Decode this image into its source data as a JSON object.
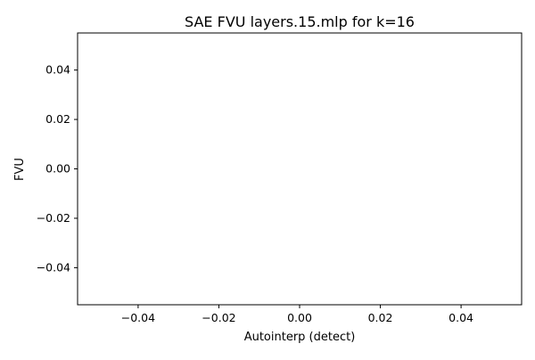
{
  "chart_data": {
    "type": "scatter",
    "title": "SAE FVU layers.15.mlp for k=16",
    "xlabel": "Autointerp (detect)",
    "ylabel": "FVU",
    "xlim": [
      -0.055,
      0.055
    ],
    "ylim": [
      -0.055,
      0.055
    ],
    "xticks": [
      -0.04,
      -0.02,
      0.0,
      0.02,
      0.04
    ],
    "yticks": [
      -0.04,
      -0.02,
      0.0,
      0.02,
      0.04
    ],
    "xtick_labels": [
      "−0.04",
      "−0.02",
      "0.00",
      "0.02",
      "0.04"
    ],
    "ytick_labels": [
      "−0.04",
      "−0.02",
      "0.00",
      "0.02",
      "0.04"
    ],
    "grid": false,
    "series": [
      {
        "x": [],
        "y": []
      }
    ]
  }
}
